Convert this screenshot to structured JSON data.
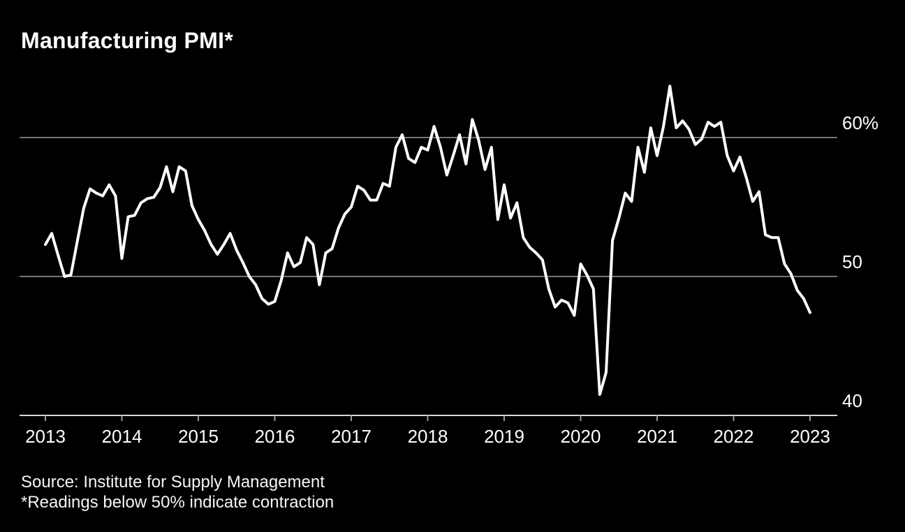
{
  "title": "Manufacturing PMI*",
  "source": {
    "line1": "Source: Institute for Supply Management",
    "line2": "*Readings below 50% indicate contraction"
  },
  "colors": {
    "background": "#000000",
    "line": "#ffffff",
    "grid": "#9c9c9c",
    "axis": "#d9d9d9",
    "text": "#ffffff"
  },
  "chart_data": {
    "type": "line",
    "title": "Manufacturing PMI*",
    "series_name": "ISM Manufacturing PMI (%)",
    "frequency": "monthly",
    "x_start": "2013-01",
    "x_end": "2023-01",
    "x_tick_labels": [
      "2013",
      "2014",
      "2015",
      "2016",
      "2017",
      "2018",
      "2019",
      "2020",
      "2021",
      "2022",
      "2023"
    ],
    "y_ticks": [
      {
        "value": 60,
        "label": "60%",
        "grid": true
      },
      {
        "value": 50,
        "label": "50",
        "grid": true
      },
      {
        "value": 40,
        "label": "40",
        "grid": false
      }
    ],
    "ylim": [
      40,
      65
    ],
    "legend": "none",
    "grid": "horizontal-only",
    "series": [
      {
        "name": "ISM Manufacturing PMI",
        "values": [
          52.3,
          53.1,
          51.5,
          50.0,
          50.1,
          52.5,
          54.9,
          56.3,
          56.0,
          55.8,
          56.6,
          55.8,
          51.3,
          54.3,
          54.4,
          55.3,
          55.6,
          55.7,
          56.4,
          57.9,
          56.1,
          57.9,
          57.6,
          55.1,
          54.1,
          53.3,
          52.3,
          51.6,
          52.3,
          53.1,
          51.9,
          51.0,
          50.0,
          49.4,
          48.4,
          48.0,
          48.2,
          49.7,
          51.7,
          50.7,
          51.0,
          52.8,
          52.3,
          49.4,
          51.7,
          52.0,
          53.5,
          54.5,
          55.0,
          56.5,
          56.2,
          55.5,
          55.5,
          56.7,
          56.5,
          59.3,
          60.2,
          58.5,
          58.2,
          59.3,
          59.1,
          60.8,
          59.3,
          57.3,
          58.7,
          60.2,
          58.1,
          61.3,
          59.8,
          57.7,
          59.3,
          54.1,
          56.6,
          54.2,
          55.3,
          52.8,
          52.1,
          51.7,
          51.2,
          49.1,
          47.8,
          48.3,
          48.1,
          47.2,
          50.9,
          50.1,
          49.1,
          41.5,
          43.1,
          52.6,
          54.2,
          56.0,
          55.4,
          59.3,
          57.5,
          60.7,
          58.7,
          60.8,
          63.7,
          60.7,
          61.2,
          60.6,
          59.5,
          59.9,
          61.1,
          60.8,
          61.1,
          58.7,
          57.6,
          58.6,
          57.1,
          55.4,
          56.1,
          53.0,
          52.8,
          52.8,
          50.9,
          50.2,
          49.0,
          48.4,
          47.4
        ]
      }
    ]
  }
}
